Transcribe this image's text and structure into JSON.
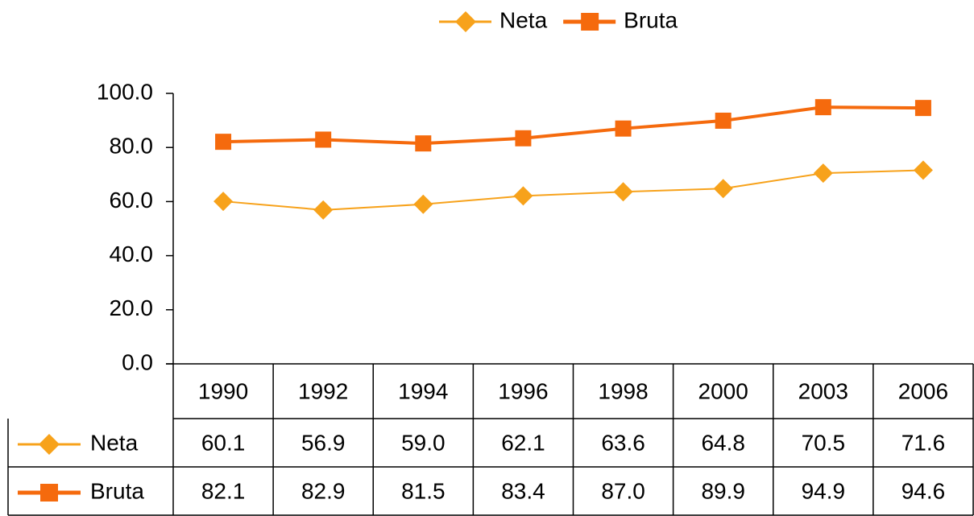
{
  "chart_data": {
    "type": "line",
    "categories": [
      "1990",
      "1992",
      "1994",
      "1996",
      "1998",
      "2000",
      "2003",
      "2006"
    ],
    "series": [
      {
        "name": "Neta",
        "color": "#f7a21b",
        "marker": "diamond",
        "values": [
          60.1,
          56.9,
          59.0,
          62.1,
          63.6,
          64.8,
          70.5,
          71.6
        ],
        "value_labels": [
          "60.1",
          "56.9",
          "59.0",
          "62.1",
          "63.6",
          "64.8",
          "70.5",
          "71.6"
        ]
      },
      {
        "name": "Bruta",
        "color": "#f56a0d",
        "marker": "square",
        "values": [
          82.1,
          82.9,
          81.5,
          83.4,
          87.0,
          89.9,
          94.9,
          94.6
        ],
        "value_labels": [
          "82.1",
          "82.9",
          "81.5",
          "83.4",
          "87.0",
          "89.9",
          "94.9",
          "94.6"
        ]
      }
    ],
    "ylim": [
      0,
      100
    ],
    "yticks": [
      {
        "value": 0,
        "label": "0.0"
      },
      {
        "value": 20,
        "label": "20.0"
      },
      {
        "value": 40,
        "label": "40.0"
      },
      {
        "value": 60,
        "label": "60.0"
      },
      {
        "value": 80,
        "label": "80.0"
      },
      {
        "value": 100,
        "label": "100.0"
      }
    ],
    "legend": "top",
    "data_table": true
  }
}
